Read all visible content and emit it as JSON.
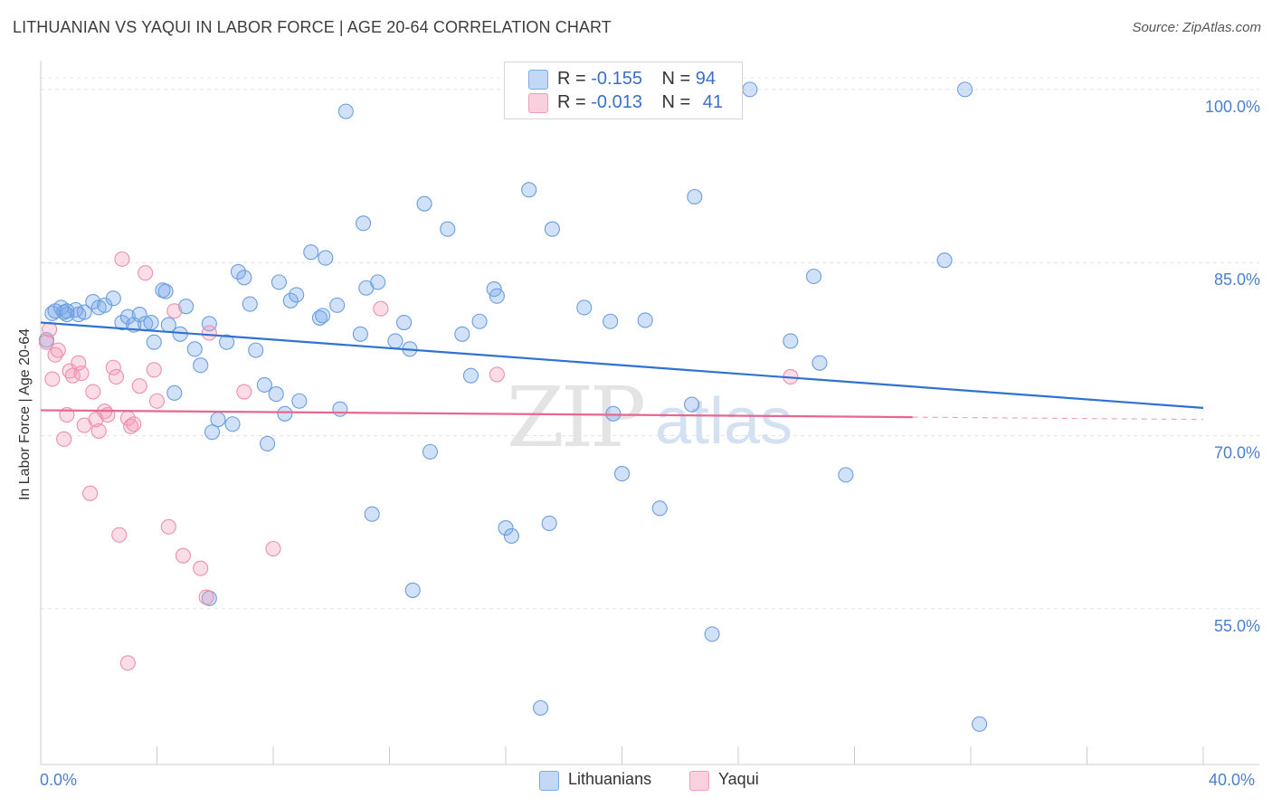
{
  "title": "LITHUANIAN VS YAQUI IN LABOR FORCE | AGE 20-64 CORRELATION CHART",
  "source": "Source: ZipAtlas.com",
  "watermark": {
    "zip": "ZIP",
    "atlas": "atlas"
  },
  "colors": {
    "lithuanian": "#7aaae8",
    "yaqui": "#f29db8",
    "blue_line": "#2f72d0",
    "pink_line": "#e8678f",
    "tick_text": "#4a7fd0"
  },
  "legend": {
    "row1": {
      "r_label": "R =",
      "r_value": "-0.155",
      "n_label": "N =",
      "n_value": "94"
    },
    "row2": {
      "r_label": "R =",
      "r_value": "-0.013",
      "n_label": "N =",
      "n_value": "41"
    }
  },
  "bottom_legend": {
    "series1": "Lithuanians",
    "series2": "Yaqui"
  },
  "chart_data": {
    "type": "scatter",
    "title": "LITHUANIAN VS YAQUI IN LABOR FORCE | AGE 20-64 CORRELATION CHART",
    "xlabel": "",
    "ylabel": "In Labor Force | Age 20-64",
    "xlim": [
      0,
      40
    ],
    "ylim": [
      41.5,
      102.5
    ],
    "x_tick_labels": [
      "0.0%",
      "40.0%"
    ],
    "y_ticks": [
      {
        "value": 100,
        "label": "100.0%"
      },
      {
        "value": 85,
        "label": "85.0%"
      },
      {
        "value": 70,
        "label": "70.0%"
      },
      {
        "value": 55,
        "label": "55.0%"
      }
    ],
    "series": [
      {
        "name": "Lithuanians",
        "r": -0.155,
        "n": 94,
        "trend": {
          "x": [
            0,
            40
          ],
          "y": [
            79.8,
            72.4
          ]
        },
        "points": [
          [
            0.2,
            78.3
          ],
          [
            0.4,
            80.6
          ],
          [
            0.5,
            80.8
          ],
          [
            0.7,
            81.1
          ],
          [
            0.8,
            80.7
          ],
          [
            0.9,
            80.5
          ],
          [
            1.2,
            80.9
          ],
          [
            1.3,
            80.5
          ],
          [
            1.5,
            80.7
          ],
          [
            1.8,
            81.6
          ],
          [
            2.0,
            81.1
          ],
          [
            2.2,
            81.3
          ],
          [
            2.5,
            81.9
          ],
          [
            2.8,
            79.8
          ],
          [
            3.0,
            80.3
          ],
          [
            3.2,
            79.6
          ],
          [
            3.4,
            80.5
          ],
          [
            3.6,
            79.7
          ],
          [
            3.8,
            79.8
          ],
          [
            3.9,
            78.1
          ],
          [
            4.2,
            82.6
          ],
          [
            4.3,
            82.5
          ],
          [
            4.4,
            79.6
          ],
          [
            4.6,
            73.7
          ],
          [
            4.8,
            78.8
          ],
          [
            5.0,
            81.2
          ],
          [
            5.3,
            77.5
          ],
          [
            5.5,
            76.1
          ],
          [
            5.8,
            79.7
          ],
          [
            6.1,
            71.4
          ],
          [
            5.9,
            70.3
          ],
          [
            6.4,
            78.1
          ],
          [
            6.6,
            71.0
          ],
          [
            6.8,
            84.2
          ],
          [
            7.0,
            83.7
          ],
          [
            7.2,
            81.4
          ],
          [
            7.4,
            77.4
          ],
          [
            7.7,
            74.4
          ],
          [
            7.8,
            69.3
          ],
          [
            8.1,
            73.6
          ],
          [
            8.2,
            83.3
          ],
          [
            8.4,
            71.9
          ],
          [
            8.6,
            81.7
          ],
          [
            8.8,
            82.2
          ],
          [
            8.9,
            73.0
          ],
          [
            9.3,
            85.9
          ],
          [
            9.6,
            80.2
          ],
          [
            9.7,
            80.4
          ],
          [
            9.8,
            85.4
          ],
          [
            10.2,
            81.3
          ],
          [
            10.3,
            72.3
          ],
          [
            10.5,
            98.1
          ],
          [
            11.0,
            78.8
          ],
          [
            11.1,
            88.4
          ],
          [
            11.2,
            82.8
          ],
          [
            11.6,
            83.3
          ],
          [
            11.4,
            63.2
          ],
          [
            12.2,
            78.2
          ],
          [
            12.5,
            79.8
          ],
          [
            12.7,
            77.5
          ],
          [
            12.8,
            56.6
          ],
          [
            13.2,
            90.1
          ],
          [
            13.4,
            68.6
          ],
          [
            14.0,
            87.9
          ],
          [
            14.5,
            78.8
          ],
          [
            14.8,
            75.2
          ],
          [
            15.1,
            79.9
          ],
          [
            15.6,
            82.7
          ],
          [
            15.7,
            82.1
          ],
          [
            16.0,
            62.0
          ],
          [
            16.2,
            61.3
          ],
          [
            16.8,
            91.3
          ],
          [
            17.2,
            46.4
          ],
          [
            17.5,
            62.4
          ],
          [
            17.6,
            87.9
          ],
          [
            18.7,
            81.1
          ],
          [
            19.7,
            71.9
          ],
          [
            19.6,
            79.9
          ],
          [
            20.0,
            66.7
          ],
          [
            20.8,
            80.0
          ],
          [
            21.3,
            63.7
          ],
          [
            22.4,
            72.7
          ],
          [
            22.5,
            90.7
          ],
          [
            23.1,
            52.8
          ],
          [
            24.4,
            100.0
          ],
          [
            25.8,
            78.2
          ],
          [
            26.6,
            83.8
          ],
          [
            26.8,
            76.3
          ],
          [
            27.7,
            66.6
          ],
          [
            31.1,
            85.2
          ],
          [
            31.8,
            100.0
          ],
          [
            32.3,
            45.0
          ],
          [
            5.8,
            55.9
          ],
          [
            0.9,
            80.8
          ]
        ]
      },
      {
        "name": "Yaqui",
        "r": -0.013,
        "n": 41,
        "trend": {
          "x": [
            0,
            30
          ],
          "y": [
            72.2,
            71.6
          ]
        },
        "trend_dashed": {
          "x": [
            30,
            40
          ],
          "y": [
            71.6,
            71.4
          ]
        },
        "points": [
          [
            0.2,
            78.1
          ],
          [
            0.3,
            79.2
          ],
          [
            0.4,
            74.9
          ],
          [
            0.5,
            77.0
          ],
          [
            0.6,
            77.4
          ],
          [
            0.8,
            69.7
          ],
          [
            0.9,
            71.8
          ],
          [
            1.0,
            75.6
          ],
          [
            1.1,
            75.2
          ],
          [
            1.3,
            76.3
          ],
          [
            1.4,
            75.4
          ],
          [
            1.5,
            70.9
          ],
          [
            1.7,
            65.0
          ],
          [
            1.8,
            73.8
          ],
          [
            1.9,
            71.4
          ],
          [
            2.0,
            70.4
          ],
          [
            2.2,
            72.1
          ],
          [
            2.3,
            71.8
          ],
          [
            2.5,
            75.9
          ],
          [
            2.6,
            75.1
          ],
          [
            2.7,
            61.4
          ],
          [
            2.8,
            85.3
          ],
          [
            3.0,
            71.5
          ],
          [
            3.1,
            70.8
          ],
          [
            3.2,
            71.0
          ],
          [
            3.4,
            74.3
          ],
          [
            3.6,
            84.1
          ],
          [
            3.9,
            75.7
          ],
          [
            4.0,
            73.0
          ],
          [
            4.4,
            62.1
          ],
          [
            4.6,
            80.8
          ],
          [
            4.9,
            59.6
          ],
          [
            5.5,
            58.5
          ],
          [
            5.7,
            56.0
          ],
          [
            5.8,
            78.9
          ],
          [
            7.0,
            73.8
          ],
          [
            8.0,
            60.2
          ],
          [
            11.7,
            81.0
          ],
          [
            15.7,
            75.3
          ],
          [
            25.8,
            75.1
          ],
          [
            3.0,
            50.3
          ]
        ]
      }
    ]
  }
}
